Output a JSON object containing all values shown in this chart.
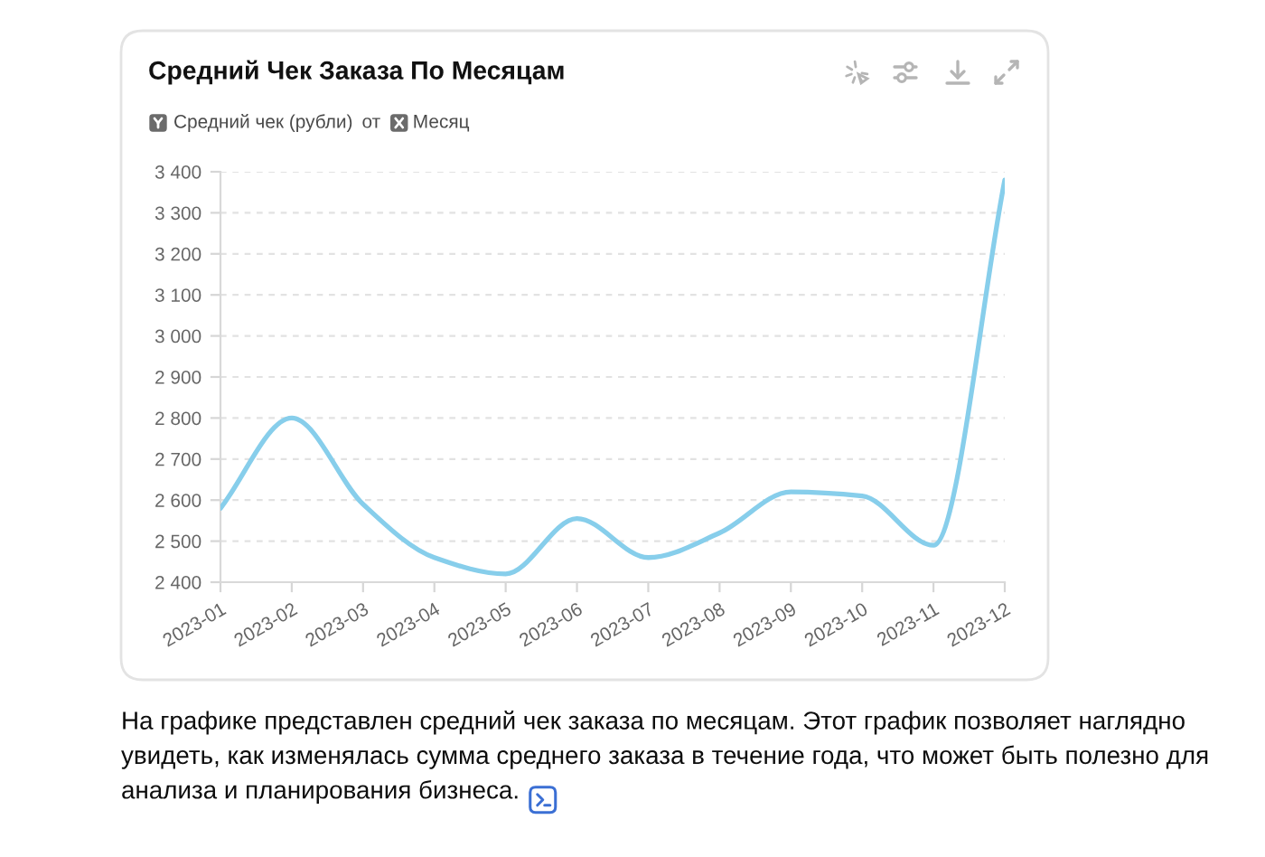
{
  "chart_data": {
    "type": "line",
    "title": "Средний Чек Заказа По Месяцам",
    "ylabel": "Средний чек (рубли)",
    "xlabel": "Месяц",
    "annotations": [
      "от",
      "На графике представлен средний чек заказа по месяцам. Этот график позволяет наглядно увидеть, как изменялась сумма среднего заказа в течение года, что может быть полезно для анализа и планирования бизнеса."
    ],
    "categories": [
      "2023-01",
      "2023-02",
      "2023-03",
      "2023-04",
      "2023-05",
      "2023-06",
      "2023-07",
      "2023-08",
      "2023-09",
      "2023-10",
      "2023-11",
      "2023-12"
    ],
    "series": [
      {
        "color": "#87ceeb",
        "values": [
          2580,
          2800,
          2590,
          2460,
          2420,
          2555,
          2460,
          2520,
          2620,
          2610,
          2490,
          3380
        ]
      }
    ],
    "ylim": [
      2400,
      3400
    ],
    "yticks": [
      {
        "value": 2400,
        "label": "2 400"
      },
      {
        "value": 2500,
        "label": "2 500"
      },
      {
        "value": 2600,
        "label": "2 600"
      },
      {
        "value": 2700,
        "label": "2 700"
      },
      {
        "value": 2800,
        "label": "2 800"
      },
      {
        "value": 2900,
        "label": "2 900"
      },
      {
        "value": 3000,
        "label": "3 000"
      },
      {
        "value": 3100,
        "label": "3 100"
      },
      {
        "value": 3200,
        "label": "3 200"
      },
      {
        "value": 3300,
        "label": "3 300"
      },
      {
        "value": 3400,
        "label": "3 400"
      }
    ],
    "grid": "y",
    "line_style": "solid"
  }
}
